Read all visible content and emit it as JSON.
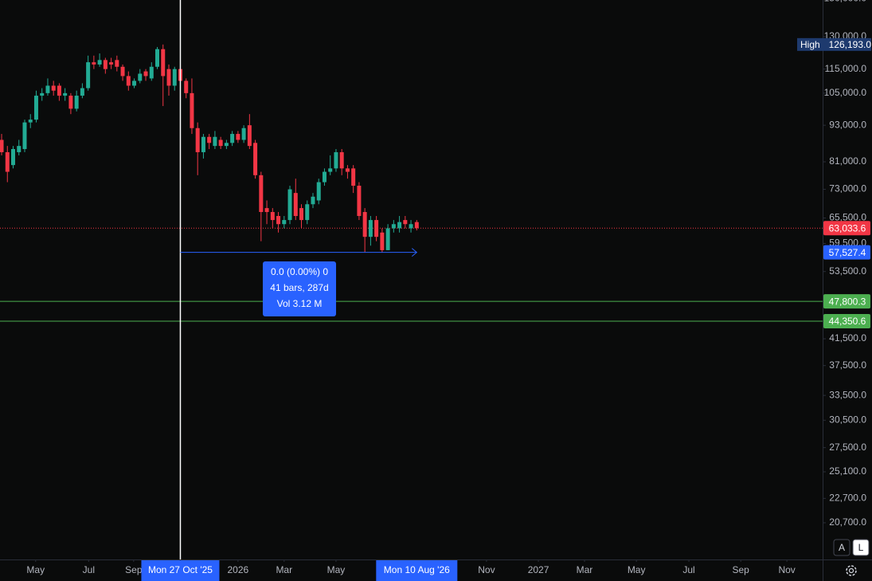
{
  "chart_data": {
    "type": "candlestick",
    "log_scale": true,
    "up_color": "#22ab94",
    "down_color": "#f23645",
    "candles": {
      "open": [
        88000,
        84000,
        80000,
        84000,
        85000,
        94000,
        95000,
        104000,
        105000,
        108000,
        108000,
        104000,
        104000,
        99000,
        104000,
        107000,
        118000,
        117000,
        119000,
        118000,
        119000,
        116000,
        112000,
        108000,
        110000,
        114000,
        111000,
        116000,
        124000,
        115000,
        108000,
        115000,
        110000,
        105000,
        92000,
        84000,
        89000,
        86000,
        88000,
        86000,
        87000,
        90000,
        88000,
        93000,
        87000,
        77000,
        68000,
        67000,
        66000,
        64000,
        65000,
        72000,
        68000,
        65000,
        69000,
        70000,
        75000,
        78000,
        79000,
        84000,
        79000,
        79000,
        74000,
        67000,
        61000,
        65000,
        62000,
        58000,
        63000,
        63000,
        65000,
        63000,
        64500
      ],
      "high": [
        90000,
        86000,
        86000,
        88000,
        95000,
        97000,
        106000,
        107000,
        111000,
        110000,
        109000,
        107000,
        105000,
        106000,
        109000,
        121000,
        121000,
        122000,
        120000,
        120000,
        121000,
        117000,
        114000,
        111000,
        115000,
        115000,
        118000,
        125000,
        126193,
        117000,
        116000,
        116000,
        111000,
        111000,
        94000,
        90000,
        90000,
        91000,
        89000,
        88000,
        91000,
        91000,
        93000,
        97000,
        88000,
        78000,
        70000,
        68000,
        67000,
        66000,
        74000,
        76000,
        69000,
        70000,
        72000,
        76000,
        79000,
        83000,
        85000,
        85000,
        80000,
        80000,
        75000,
        68000,
        66000,
        66000,
        63000,
        64000,
        65000,
        66000,
        66000,
        65000,
        65000
      ],
      "low": [
        83000,
        75000,
        79000,
        83000,
        84000,
        92000,
        94000,
        102000,
        104000,
        104000,
        102000,
        102000,
        97000,
        98000,
        103000,
        106000,
        115000,
        116000,
        113000,
        115000,
        114000,
        110000,
        106000,
        107000,
        109000,
        110000,
        110000,
        115000,
        100000,
        104000,
        106000,
        108000,
        103000,
        90000,
        77000,
        82000,
        85000,
        85000,
        85000,
        85000,
        86000,
        87000,
        87000,
        85000,
        76000,
        60000,
        64000,
        63000,
        62000,
        63000,
        64000,
        65000,
        63000,
        64000,
        68000,
        69000,
        74000,
        77000,
        78000,
        77000,
        76000,
        72000,
        65000,
        57600,
        59000,
        60000,
        57527.4,
        58000,
        62000,
        62000,
        63000,
        62000,
        62500
      ],
      "close": [
        84000,
        78000,
        85000,
        86000,
        94000,
        95000,
        104000,
        105000,
        108000,
        106000,
        104000,
        105000,
        99000,
        104000,
        107000,
        118000,
        117000,
        119000,
        115000,
        117000,
        116000,
        112000,
        108000,
        110000,
        113000,
        112000,
        116000,
        124000,
        112000,
        108000,
        115000,
        110000,
        105000,
        92000,
        84000,
        89000,
        87000,
        89000,
        86000,
        87000,
        90000,
        88000,
        92000,
        86000,
        77000,
        67000,
        67000,
        65000,
        64000,
        65000,
        73000,
        66000,
        65000,
        69000,
        71000,
        75000,
        78000,
        79000,
        84000,
        79000,
        78000,
        74000,
        66000,
        61000,
        65000,
        61000,
        58000,
        63000,
        64000,
        64500,
        64000,
        64000,
        63033.6
      ]
    },
    "xlim": [
      -0.28,
      142.4
    ],
    "xticks": [
      {
        "value": 5.9,
        "label": "May"
      },
      {
        "value": 15.1,
        "label": "Jul"
      },
      {
        "value": 22.9,
        "label": "Sep"
      },
      {
        "value": 41.0,
        "label": "2026"
      },
      {
        "value": 49.0,
        "label": "Mar"
      },
      {
        "value": 58.0,
        "label": "May"
      },
      {
        "value": 84.1,
        "label": "Nov"
      },
      {
        "value": 93.1,
        "label": "2027"
      },
      {
        "value": 101.1,
        "label": "Mar"
      },
      {
        "value": 110.1,
        "label": "May"
      },
      {
        "value": 119.2,
        "label": "Jul"
      },
      {
        "value": 128.2,
        "label": "Sep"
      },
      {
        "value": 136.2,
        "label": "Nov"
      }
    ],
    "ylim": [
      18020,
      149300
    ],
    "yticks": [
      {
        "value": 150000,
        "label": "150,000.0"
      },
      {
        "value": 130000,
        "label": "130,000.0"
      },
      {
        "value": 115000,
        "label": "115,000.0"
      },
      {
        "value": 105000,
        "label": "105,000.0"
      },
      {
        "value": 93000,
        "label": "93,000.0"
      },
      {
        "value": 81000,
        "label": "81,000.0"
      },
      {
        "value": 73000,
        "label": "73,000.0"
      },
      {
        "value": 65500,
        "label": "65,500.0"
      },
      {
        "value": 59500,
        "label": "59,500.0"
      },
      {
        "value": 53500,
        "label": "53,500.0"
      },
      {
        "value": 41500,
        "label": "41,500.0"
      },
      {
        "value": 37500,
        "label": "37,500.0"
      },
      {
        "value": 33500,
        "label": "33,500.0"
      },
      {
        "value": 30500,
        "label": "30,500.0"
      },
      {
        "value": 27500,
        "label": "27,500.0"
      },
      {
        "value": 25100,
        "label": "25,100.0"
      },
      {
        "value": 22700,
        "label": "22,700.0"
      },
      {
        "value": 20700,
        "label": "20,700.0"
      }
    ],
    "high_marker": {
      "label": "High",
      "value": 126193,
      "value_label": "126,193.0"
    },
    "price_lines": [
      {
        "value": 63033.6,
        "label": "63,033.6",
        "color": "#f23645",
        "style": "dotted"
      },
      {
        "value": 57527.4,
        "label": "57,527.4",
        "color": "#2962ff",
        "style": "none"
      },
      {
        "value": 47800.3,
        "label": "47,800.3",
        "color": "#4caf50",
        "style": "solid"
      },
      {
        "value": 44350.6,
        "label": "44,350.6",
        "color": "#4caf50",
        "style": "solid"
      }
    ],
    "crosshair": {
      "x": 31,
      "label": "Mon 27 Oct '25"
    },
    "measure": {
      "x_start": 31,
      "x_end": 72,
      "end_label": "Mon 10 Aug '26",
      "lines": [
        "0.0 (0.00%) 0",
        "41 bars, 287d",
        "Vol 3.12 M"
      ]
    },
    "buttons": [
      "A",
      "L"
    ]
  }
}
